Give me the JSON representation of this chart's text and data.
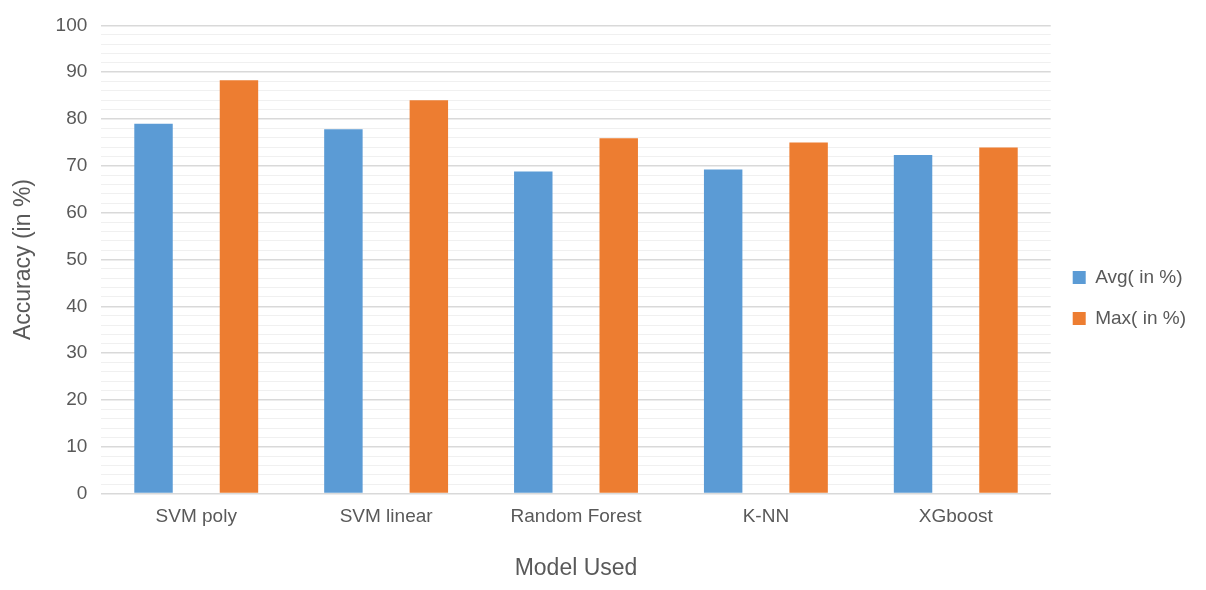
{
  "chart_data": {
    "type": "bar",
    "xlabel": "Model Used",
    "ylabel": "Accuracy (in %)",
    "categories": [
      "SVM poly",
      "SVM linear",
      "Random Forest",
      "K-NN",
      "XGboost"
    ],
    "series": [
      {
        "name": "Avg( in %)",
        "color": "#5b9bd5",
        "values": [
          79,
          77.8,
          68.8,
          69.2,
          72.3
        ]
      },
      {
        "name": "Max( in %)",
        "color": "#ed7d31",
        "values": [
          88.3,
          84,
          75.9,
          75,
          73.9
        ]
      }
    ],
    "ylim": [
      0,
      100
    ],
    "yticks": [
      0,
      {
        "value": 2,
        "label": null
      },
      {
        "value": 4,
        "label": null
      },
      {
        "value": 6,
        "label": null
      },
      {
        "value": 8,
        "label": null
      },
      10,
      {
        "value": 12,
        "label": null
      },
      {
        "value": 14,
        "label": null
      },
      {
        "value": 16,
        "label": null
      },
      {
        "value": 18,
        "label": null
      },
      20,
      {
        "value": 22,
        "label": null
      },
      {
        "value": 24,
        "label": null
      },
      {
        "value": 26,
        "label": null
      },
      {
        "value": 28,
        "label": null
      },
      30,
      {
        "value": 32,
        "label": null
      },
      {
        "value": 34,
        "label": null
      },
      {
        "value": 36,
        "label": null
      },
      {
        "value": 38,
        "label": null
      },
      40,
      {
        "value": 42,
        "label": null
      },
      {
        "value": 44,
        "label": null
      },
      {
        "value": 46,
        "label": null
      },
      {
        "value": 48,
        "label": null
      },
      50,
      {
        "value": 52,
        "label": null
      },
      {
        "value": 54,
        "label": null
      },
      {
        "value": 56,
        "label": null
      },
      {
        "value": 58,
        "label": null
      },
      60,
      {
        "value": 62,
        "label": null
      },
      {
        "value": 64,
        "label": null
      },
      {
        "value": 66,
        "label": null
      },
      {
        "value": 68,
        "label": null
      },
      70,
      {
        "value": 72,
        "label": null
      },
      {
        "value": 74,
        "label": null
      },
      {
        "value": 76,
        "label": null
      },
      {
        "value": 78,
        "label": null
      },
      80,
      {
        "value": 82,
        "label": null
      },
      {
        "value": 84,
        "label": null
      },
      {
        "value": 86,
        "label": null
      },
      {
        "value": 88,
        "label": null
      },
      90,
      {
        "value": 92,
        "label": null
      },
      {
        "value": 94,
        "label": null
      },
      {
        "value": 96,
        "label": null
      },
      {
        "value": 98,
        "label": null
      },
      100
    ],
    "grid": "y",
    "legend": "right"
  }
}
